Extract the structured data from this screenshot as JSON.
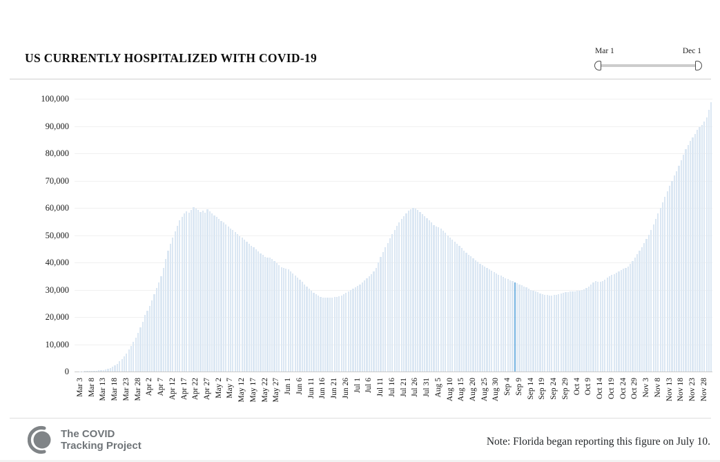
{
  "header": {
    "title": "US CURRENTLY HOSPITALIZED WITH COVID-19"
  },
  "range_slider": {
    "start_label": "Mar 1",
    "end_label": "Dec 1"
  },
  "footer": {
    "logo_line1": "The COVID",
    "logo_line2": "Tracking Project",
    "note": "Note: Florida began reporting this figure on July 10."
  },
  "colors": {
    "bar": "#dbe7f3",
    "bar_highlight": "#72b1e0",
    "grid": "#f0f0f0",
    "axis_line": "#c9c9c9",
    "slider_track": "#cccccc",
    "logo_gray": "#808487"
  },
  "chart_data": {
    "type": "bar",
    "title": "US CURRENTLY HOSPITALIZED WITH COVID-19",
    "xlabel": "",
    "ylabel": "",
    "ylim": [
      0,
      100000
    ],
    "grid": true,
    "date_start": "Mar 1",
    "date_end": "Dec 1",
    "y_ticks": [
      "0",
      "10,000",
      "20,000",
      "30,000",
      "40,000",
      "50,000",
      "60,000",
      "70,000",
      "80,000",
      "90,000",
      "100,000"
    ],
    "x_tick_start_index": 2,
    "x_tick_step": 5,
    "x_tick_labels": [
      "Mar 3",
      "Mar 8",
      "Mar 13",
      "Mar 18",
      "Mar 23",
      "Mar 28",
      "Apr 2",
      "Apr 7",
      "Apr 12",
      "Apr 17",
      "Apr 22",
      "Apr 27",
      "May 2",
      "May 7",
      "May 12",
      "May 17",
      "May 22",
      "May 27",
      "Jun 1",
      "Jun 6",
      "Jun 11",
      "Jun 16",
      "Jun 21",
      "Jun 26",
      "Jul 1",
      "Jul 6",
      "Jul 11",
      "Jul 16",
      "Jul 21",
      "Jul 26",
      "Jul 31",
      "Aug 5",
      "Aug 10",
      "Aug 15",
      "Aug 20",
      "Aug 25",
      "Aug 30",
      "Sep 4",
      "Sep 9",
      "Sep 14",
      "Sep 19",
      "Sep 24",
      "Sep 29",
      "Oct 4",
      "Oct 9",
      "Oct 14",
      "Oct 19",
      "Oct 24",
      "Oct 29",
      "Nov 3",
      "Nov 8",
      "Nov 13",
      "Nov 18",
      "Nov 23",
      "Nov 28"
    ],
    "highlight_index": 190,
    "values": [
      0,
      0,
      100,
      120,
      140,
      160,
      200,
      240,
      280,
      330,
      390,
      470,
      580,
      750,
      1000,
      1300,
      1800,
      2300,
      2900,
      3700,
      4600,
      5600,
      6700,
      8000,
      9400,
      10900,
      12500,
      14200,
      16100,
      18300,
      20700,
      22300,
      24000,
      26000,
      28300,
      30600,
      32700,
      35000,
      38000,
      41200,
      44200,
      46800,
      49200,
      51400,
      53500,
      55400,
      56800,
      57900,
      58700,
      58200,
      59200,
      60200,
      59800,
      59300,
      58600,
      58900,
      58200,
      59400,
      58800,
      57900,
      57200,
      56600,
      56000,
      55300,
      54600,
      53900,
      53200,
      52500,
      51800,
      51100,
      50400,
      49700,
      49000,
      48300,
      47600,
      46900,
      46200,
      45500,
      44800,
      44100,
      43400,
      42700,
      42000,
      41900,
      41700,
      41200,
      40500,
      39700,
      38900,
      38300,
      38000,
      37800,
      37400,
      36800,
      36000,
      35200,
      34400,
      33600,
      32800,
      32000,
      31200,
      30400,
      29600,
      28900,
      28300,
      27800,
      27400,
      27100,
      27000,
      27000,
      27100,
      27200,
      27300,
      27400,
      27600,
      27900,
      28300,
      28800,
      29400,
      30000,
      30400,
      30800,
      31400,
      32000,
      32700,
      33400,
      34100,
      34900,
      35800,
      36800,
      37900,
      40000,
      42000,
      43800,
      45500,
      47200,
      48900,
      50500,
      52000,
      53400,
      54700,
      55900,
      57000,
      58000,
      58900,
      59600,
      59900,
      59800,
      59300,
      58600,
      57800,
      57000,
      56200,
      55400,
      54600,
      53800,
      53200,
      52800,
      52300,
      51600,
      50800,
      50000,
      49200,
      48400,
      47600,
      46800,
      46000,
      45200,
      44400,
      43600,
      42900,
      42200,
      41500,
      40800,
      40200,
      39600,
      39000,
      38500,
      38000,
      37500,
      37000,
      36500,
      36000,
      35500,
      35100,
      34700,
      34300,
      33900,
      33500,
      33200,
      32600,
      32300,
      32000,
      31600,
      31200,
      30800,
      30400,
      30000,
      29600,
      29300,
      29000,
      28700,
      28400,
      28200,
      28000,
      27900,
      27900,
      28000,
      28200,
      28400,
      28600,
      28800,
      29000,
      29200,
      29300,
      29400,
      29400,
      29500,
      29600,
      29800,
      30100,
      30600,
      31200,
      31900,
      32600,
      33200,
      33000,
      32800,
      33200,
      33800,
      34400,
      34900,
      35400,
      35800,
      36200,
      36700,
      37200,
      37800,
      38000,
      38500,
      39500,
      40500,
      41800,
      43000,
      44300,
      45600,
      47000,
      48500,
      50200,
      52000,
      54000,
      56000,
      58000,
      60000,
      62000,
      64000,
      66000,
      68000,
      70000,
      71800,
      73500,
      75500,
      77500,
      79500,
      81500,
      83000,
      84500,
      85800,
      87000,
      88500,
      89500,
      90500,
      91600,
      93200,
      96000,
      98700
    ]
  }
}
